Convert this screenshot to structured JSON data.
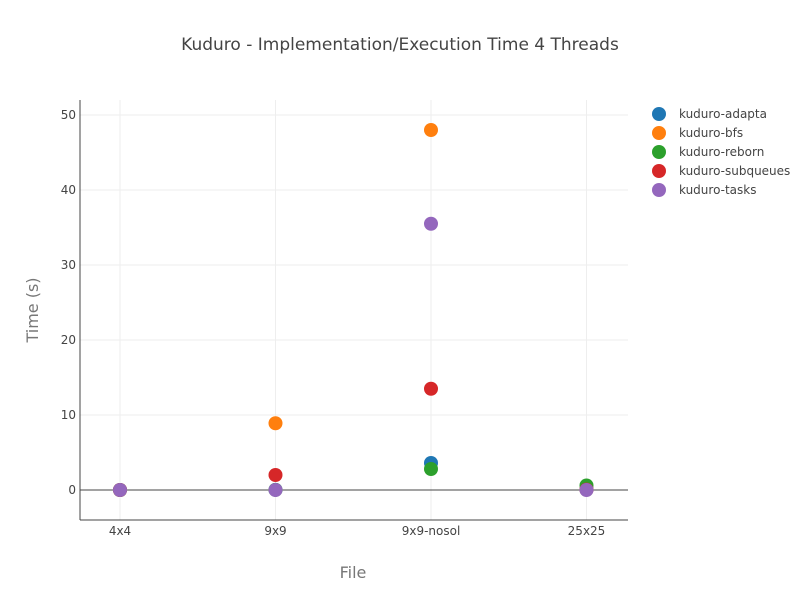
{
  "chart_data": {
    "type": "scatter",
    "title": "Kuduro - Implementation/Execution Time 4 Threads",
    "xlabel": "File",
    "ylabel": "Time (s)",
    "categories": [
      "4x4",
      "9x9",
      "9x9-nosol",
      "25x25"
    ],
    "ylim": [
      -4,
      52
    ],
    "yticks": [
      0,
      10,
      20,
      30,
      40,
      50
    ],
    "grid": true,
    "legend_position": "top-right",
    "series": [
      {
        "name": "kuduro-adapta",
        "color": "#1f77b4",
        "values": [
          0.0,
          0.02,
          3.6,
          0.05
        ]
      },
      {
        "name": "kuduro-bfs",
        "color": "#ff7f0e",
        "values": [
          0.0,
          8.9,
          48.0,
          0.05
        ]
      },
      {
        "name": "kuduro-reborn",
        "color": "#2ca02c",
        "values": [
          0.0,
          0.02,
          2.8,
          0.6
        ]
      },
      {
        "name": "kuduro-subqueues",
        "color": "#d62728",
        "values": [
          0.0,
          2.0,
          13.5,
          0.05
        ]
      },
      {
        "name": "kuduro-tasks",
        "color": "#9467bd",
        "values": [
          0.0,
          0.0,
          35.5,
          0.0
        ]
      }
    ]
  }
}
